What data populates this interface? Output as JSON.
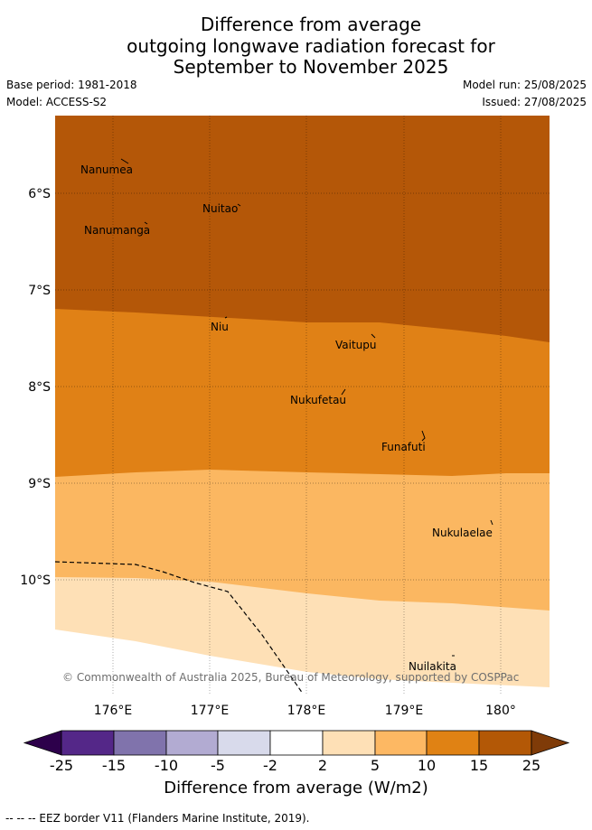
{
  "title": {
    "line1": "Difference from average",
    "line2": "outgoing longwave radiation forecast for",
    "line3": "September to November 2025"
  },
  "meta": {
    "base_period": "Base period: 1981-2018",
    "model": "Model: ACCESS-S2",
    "model_run": "Model run: 25/08/2025",
    "issued": "Issued: 27/08/2025"
  },
  "map": {
    "lat_labels": [
      "6°S",
      "7°S",
      "8°S",
      "9°S",
      "10°S"
    ],
    "lon_labels": [
      "176°E",
      "177°E",
      "178°E",
      "179°E",
      "180°"
    ],
    "places": [
      "Nanumea",
      "Nuitao",
      "Nanumanga",
      "Niu",
      "Vaitupu",
      "Nukufetau",
      "Funafuti",
      "Nukulaelae",
      "Nuilakita"
    ],
    "copyright": "© Commonwealth of Australia 2025, Bureau of Meteorology, supported by COSPPac",
    "colors": {
      "10_to_15": "#b45708",
      "5_to_10": "#e08116",
      "2_to_5": "#fbb761",
      "minus2_to_2": "#ffffff",
      "0_to_2": "#fee0b6"
    }
  },
  "colorbar": {
    "ticks": [
      "-25",
      "-15",
      "-10",
      "-5",
      "-2",
      "2",
      "5",
      "10",
      "15",
      "25"
    ],
    "colors": [
      "#2d004b",
      "#542788",
      "#8073ac",
      "#b2abd2",
      "#d8daeb",
      "#ffffff",
      "#fee0b6",
      "#fdb863",
      "#e08214",
      "#b35806",
      "#7f3b08"
    ],
    "label": "Difference from average (W/m2)"
  },
  "footnote": "--  --  -- EEZ border V11 (Flanders Marine Institute, 2019)."
}
